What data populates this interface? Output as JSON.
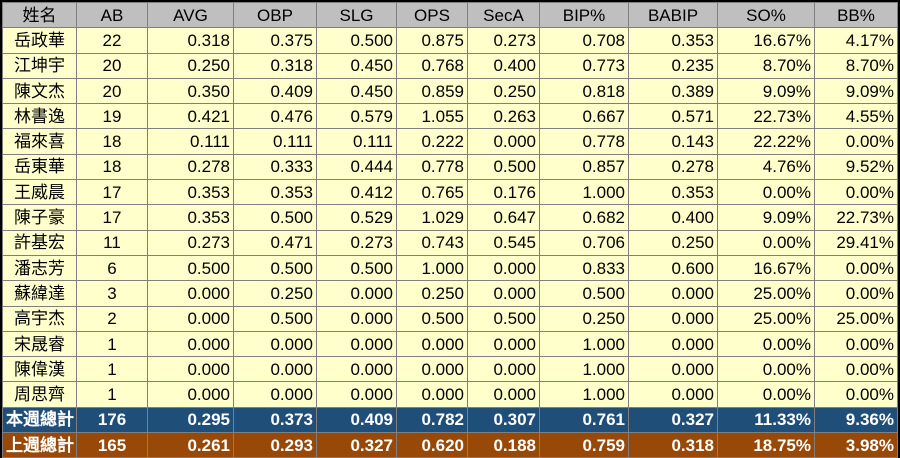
{
  "columns": [
    "姓名",
    "AB",
    "AVG",
    "OBP",
    "SLG",
    "OPS",
    "SecA",
    "BIP%",
    "BABIP",
    "SO%",
    "BB%"
  ],
  "rows": [
    [
      "岳政華",
      "22",
      "0.318",
      "0.375",
      "0.500",
      "0.875",
      "0.273",
      "0.708",
      "0.353",
      "16.67%",
      "4.17%"
    ],
    [
      "江坤宇",
      "20",
      "0.250",
      "0.318",
      "0.450",
      "0.768",
      "0.400",
      "0.773",
      "0.235",
      "8.70%",
      "8.70%"
    ],
    [
      "陳文杰",
      "20",
      "0.350",
      "0.409",
      "0.450",
      "0.859",
      "0.250",
      "0.818",
      "0.389",
      "9.09%",
      "9.09%"
    ],
    [
      "林書逸",
      "19",
      "0.421",
      "0.476",
      "0.579",
      "1.055",
      "0.263",
      "0.667",
      "0.571",
      "22.73%",
      "4.55%"
    ],
    [
      "福來喜",
      "18",
      "0.111",
      "0.111",
      "0.111",
      "0.222",
      "0.000",
      "0.778",
      "0.143",
      "22.22%",
      "0.00%"
    ],
    [
      "岳東華",
      "18",
      "0.278",
      "0.333",
      "0.444",
      "0.778",
      "0.500",
      "0.857",
      "0.278",
      "4.76%",
      "9.52%"
    ],
    [
      "王威晨",
      "17",
      "0.353",
      "0.353",
      "0.412",
      "0.765",
      "0.176",
      "1.000",
      "0.353",
      "0.00%",
      "0.00%"
    ],
    [
      "陳子豪",
      "17",
      "0.353",
      "0.500",
      "0.529",
      "1.029",
      "0.647",
      "0.682",
      "0.400",
      "9.09%",
      "22.73%"
    ],
    [
      "許基宏",
      "11",
      "0.273",
      "0.471",
      "0.273",
      "0.743",
      "0.545",
      "0.706",
      "0.250",
      "0.00%",
      "29.41%"
    ],
    [
      "潘志芳",
      "6",
      "0.500",
      "0.500",
      "0.500",
      "1.000",
      "0.000",
      "0.833",
      "0.600",
      "16.67%",
      "0.00%"
    ],
    [
      "蘇緯達",
      "3",
      "0.000",
      "0.250",
      "0.000",
      "0.250",
      "0.000",
      "0.500",
      "0.000",
      "25.00%",
      "0.00%"
    ],
    [
      "高宇杰",
      "2",
      "0.000",
      "0.500",
      "0.000",
      "0.500",
      "0.500",
      "0.250",
      "0.000",
      "25.00%",
      "25.00%"
    ],
    [
      "宋晟睿",
      "1",
      "0.000",
      "0.000",
      "0.000",
      "0.000",
      "0.000",
      "1.000",
      "0.000",
      "0.00%",
      "0.00%"
    ],
    [
      "陳偉漢",
      "1",
      "0.000",
      "0.000",
      "0.000",
      "0.000",
      "0.000",
      "1.000",
      "0.000",
      "0.00%",
      "0.00%"
    ],
    [
      "周思齊",
      "1",
      "0.000",
      "0.000",
      "0.000",
      "0.000",
      "0.000",
      "1.000",
      "0.000",
      "0.00%",
      "0.00%"
    ]
  ],
  "totals": [
    {
      "kind": "this-week",
      "color": "#1f4e79",
      "cells": [
        "本週總計",
        "176",
        "0.295",
        "0.373",
        "0.409",
        "0.782",
        "0.307",
        "0.761",
        "0.327",
        "11.33%",
        "9.36%"
      ]
    },
    {
      "kind": "last-week",
      "color": "#984807",
      "cells": [
        "上週總計",
        "165",
        "0.261",
        "0.293",
        "0.327",
        "0.620",
        "0.188",
        "0.759",
        "0.318",
        "18.75%",
        "3.98%"
      ]
    }
  ]
}
